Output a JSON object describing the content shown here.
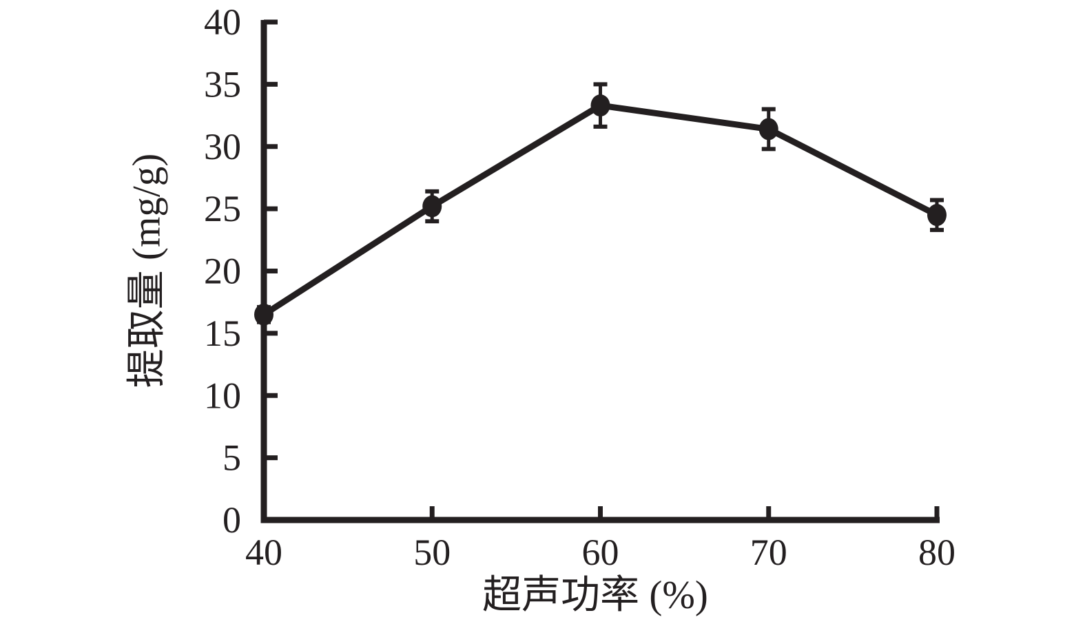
{
  "chart_data": {
    "type": "line",
    "title": "",
    "xlabel": "超声功率 (%)",
    "ylabel": "提取量 (mg/g)",
    "x": [
      40,
      50,
      60,
      70,
      80
    ],
    "series": [
      {
        "name": "提取量",
        "values": [
          16.5,
          25.2,
          33.3,
          31.4,
          24.5
        ],
        "errors": [
          0.6,
          1.2,
          1.7,
          1.6,
          1.2
        ]
      }
    ],
    "xlim": [
      40,
      80
    ],
    "ylim": [
      0,
      40
    ],
    "xticks": [
      40,
      50,
      60,
      70,
      80
    ],
    "yticks": [
      0,
      5,
      10,
      15,
      20,
      25,
      30,
      35,
      40
    ],
    "grid": false,
    "legend": false,
    "marker": "filled-circle",
    "error_bars": true,
    "line_color": "#231f20",
    "background": "#ffffff"
  }
}
